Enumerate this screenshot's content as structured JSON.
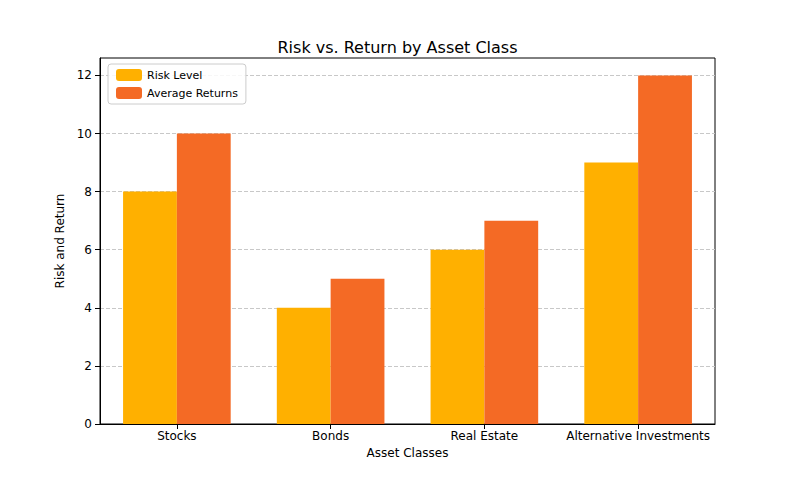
{
  "chart_data": {
    "type": "bar",
    "title": "Risk vs. Return by Asset Class",
    "x_label": "Asset Classes",
    "y_label": "Risk and Return",
    "categories": [
      "Stocks",
      "Bonds",
      "Real Estate",
      "Alternative Investments"
    ],
    "series": [
      {
        "name": "Risk Level",
        "color": "#ffb000",
        "values": [
          8,
          4,
          6,
          9
        ]
      },
      {
        "name": "Average Returns",
        "color": "#f46a25",
        "values": [
          10,
          5,
          7,
          12
        ]
      }
    ],
    "ylim": [
      0,
      12.6
    ],
    "yticks": [
      0,
      2,
      4,
      6,
      8,
      10,
      12
    ],
    "grid": true,
    "legend": "upper left"
  }
}
